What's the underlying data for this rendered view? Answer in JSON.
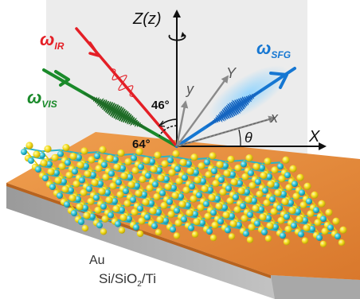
{
  "labels": {
    "z_axis": "Z(z)",
    "omega_ir": {
      "symbol": "ω",
      "sub": "IR"
    },
    "omega_vis": {
      "symbol": "ω",
      "sub": "VIS"
    },
    "omega_sfg": {
      "symbol": "ω",
      "sub": "SFG"
    },
    "angle_46": "46°",
    "angle_64": "64°",
    "axis_y_lower": "y",
    "axis_Y_upper": "Y",
    "axis_x_lower": "x",
    "axis_X_upper": "X",
    "theta": "θ",
    "substrate_top": "Au",
    "substrate_bottom": {
      "main": "Si/SiO",
      "sub": "2",
      "tail": "/Ti"
    }
  },
  "colors": {
    "ir": "#e41f26",
    "vis": "#1a8a2a",
    "sfg": "#1677d2",
    "gold": "#e8883a",
    "gold_dark": "#b8631e",
    "silicon": "#bfbfbf",
    "silicon_dark": "#8e8e8e",
    "s_atom": "#f5e12a",
    "mo_atom": "#2ec3d6"
  }
}
